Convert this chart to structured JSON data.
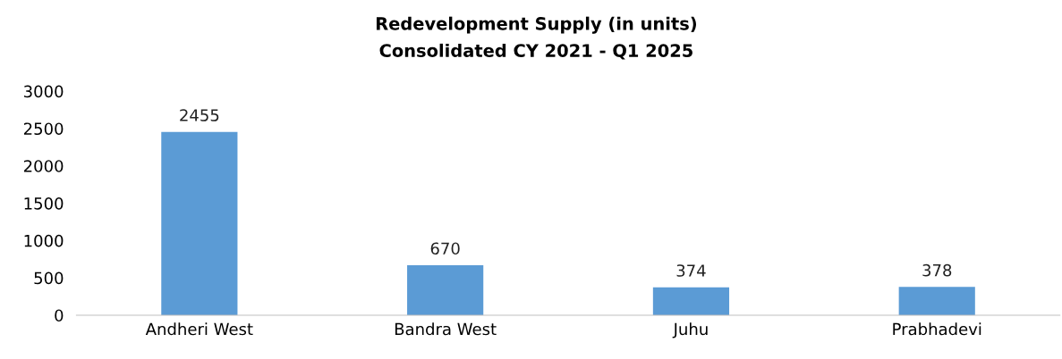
{
  "chart_data": {
    "type": "bar",
    "title": "Redevelopment Supply (in units)",
    "subtitle": "Consolidated CY 2021 - Q1 2025",
    "categories": [
      "Andheri West",
      "Bandra West",
      "Juhu",
      "Prabhadevi"
    ],
    "values": [
      2455,
      670,
      374,
      378
    ],
    "color": "#5b9bd5",
    "ylim": [
      0,
      3000
    ],
    "yticks": [
      0,
      500,
      1000,
      1500,
      2000,
      2500,
      3000
    ],
    "grid": false,
    "data_labels": true,
    "legend": false
  }
}
